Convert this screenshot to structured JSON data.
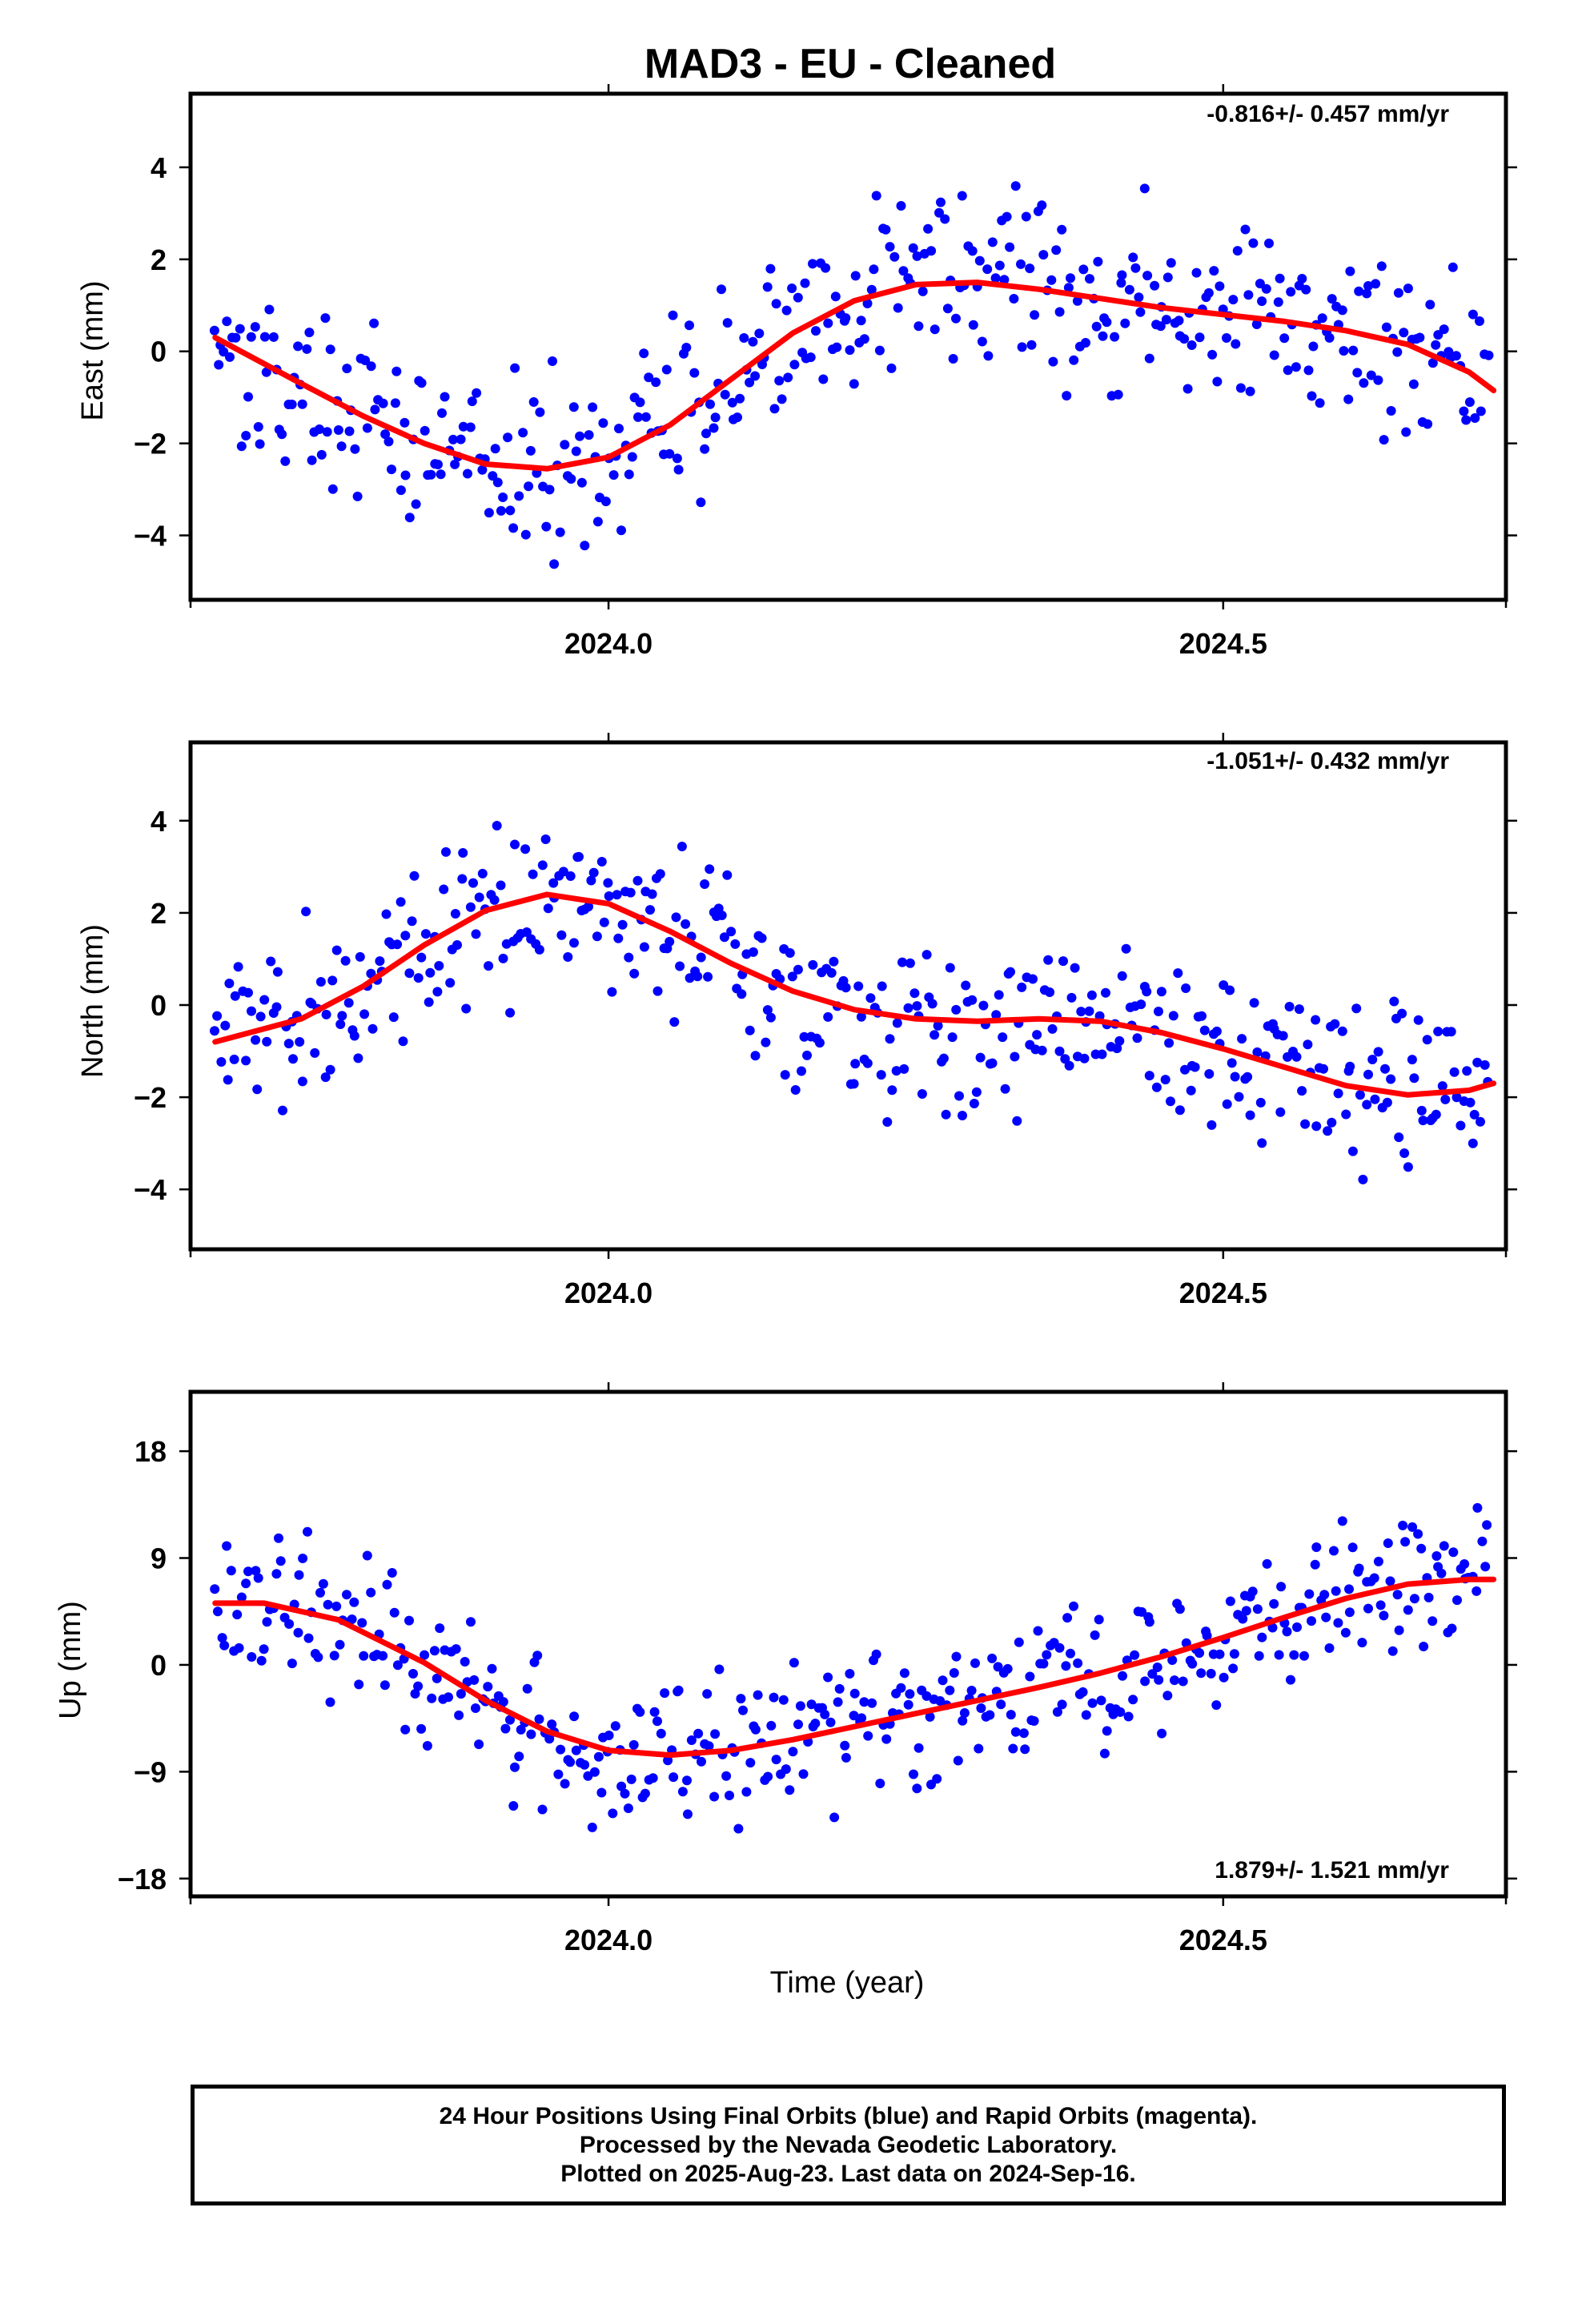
{
  "title": "MAD3  - EU - Cleaned",
  "xlabel": "Time (year)",
  "footer_lines": [
    "24 Hour Positions Using Final Orbits (blue) and Rapid Orbits (magenta).",
    "Processed by the Nevada Geodetic Laboratory.",
    "Plotted on 2025-Aug-23. Last data on 2024-Sep-16."
  ],
  "colors": {
    "points": "#0000ff",
    "trend": "#ff0000",
    "frame": "#000000"
  },
  "chart_data": [
    {
      "type": "scatter",
      "name": "east",
      "ylabel": "East (mm)",
      "rate_label": "-0.816+/- 0.457 mm/yr",
      "rate_position": "top-right",
      "xlim": [
        2023.66,
        2024.73
      ],
      "ylim": [
        -5.4,
        5.6
      ],
      "xticks": [
        2024.0,
        2024.5
      ],
      "xtick_labels": [
        "2024.0",
        "2024.5"
      ],
      "yticks": [
        -4,
        -2,
        0,
        2,
        4
      ],
      "ytick_labels": [
        "−4",
        "−2",
        "0",
        "2",
        "4"
      ],
      "grid": false,
      "n_points": 420,
      "noise_mm": 1.4,
      "trend": {
        "x": [
          2023.68,
          2023.75,
          2023.8,
          2023.85,
          2023.9,
          2023.95,
          2024.0,
          2024.05,
          2024.1,
          2024.15,
          2024.2,
          2024.25,
          2024.3,
          2024.35,
          2024.4,
          2024.45,
          2024.5,
          2024.55,
          2024.6,
          2024.65,
          2024.7,
          2024.72
        ],
        "y": [
          0.3,
          -0.7,
          -1.4,
          -2.0,
          -2.45,
          -2.55,
          -2.3,
          -1.6,
          -0.6,
          0.4,
          1.1,
          1.45,
          1.5,
          1.35,
          1.15,
          0.95,
          0.8,
          0.65,
          0.45,
          0.15,
          -0.45,
          -0.85
        ]
      }
    },
    {
      "type": "scatter",
      "name": "north",
      "ylabel": "North (mm)",
      "rate_label": "-1.051+/- 0.432 mm/yr",
      "rate_position": "top-right",
      "xlim": [
        2023.66,
        2024.73
      ],
      "ylim": [
        -5.3,
        5.7
      ],
      "xticks": [
        2024.0,
        2024.5
      ],
      "xtick_labels": [
        "2024.0",
        "2024.5"
      ],
      "yticks": [
        -4,
        -2,
        0,
        2,
        4
      ],
      "ytick_labels": [
        "−4",
        "−2",
        "0",
        "2",
        "4"
      ],
      "grid": false,
      "n_points": 420,
      "noise_mm": 1.3,
      "trend": {
        "x": [
          2023.68,
          2023.75,
          2023.8,
          2023.85,
          2023.9,
          2023.95,
          2024.0,
          2024.05,
          2024.1,
          2024.15,
          2024.2,
          2024.25,
          2024.3,
          2024.35,
          2024.4,
          2024.45,
          2024.5,
          2024.55,
          2024.6,
          2024.65,
          2024.7,
          2024.72
        ],
        "y": [
          -0.8,
          -0.3,
          0.4,
          1.3,
          2.05,
          2.4,
          2.2,
          1.6,
          0.9,
          0.3,
          -0.1,
          -0.3,
          -0.35,
          -0.3,
          -0.35,
          -0.6,
          -0.95,
          -1.35,
          -1.75,
          -1.95,
          -1.85,
          -1.7
        ]
      }
    },
    {
      "type": "scatter",
      "name": "up",
      "ylabel": "Up (mm)",
      "rate_label": "1.879+/- 1.521 mm/yr",
      "rate_position": "bottom-right",
      "xlim": [
        2023.66,
        2024.73
      ],
      "ylim": [
        -19.5,
        23.0
      ],
      "xticks": [
        2024.0,
        2024.5
      ],
      "xtick_labels": [
        "2024.0",
        "2024.5"
      ],
      "yticks": [
        -18,
        -9,
        0,
        9,
        18
      ],
      "ytick_labels": [
        "−18",
        "−9",
        "0",
        "9",
        "18"
      ],
      "grid": false,
      "n_points": 420,
      "noise_mm": 4.5,
      "trend": {
        "x": [
          2023.68,
          2023.72,
          2023.78,
          2023.85,
          2023.9,
          2023.95,
          2024.0,
          2024.05,
          2024.1,
          2024.15,
          2024.2,
          2024.25,
          2024.3,
          2024.35,
          2024.4,
          2024.45,
          2024.5,
          2024.55,
          2024.6,
          2024.65,
          2024.7,
          2024.72
        ],
        "y": [
          5.2,
          5.2,
          3.8,
          0.2,
          -3.0,
          -5.6,
          -7.2,
          -7.6,
          -7.2,
          -6.3,
          -5.2,
          -4.1,
          -3.0,
          -1.9,
          -0.7,
          0.7,
          2.3,
          4.0,
          5.6,
          6.8,
          7.2,
          7.2
        ]
      }
    }
  ]
}
